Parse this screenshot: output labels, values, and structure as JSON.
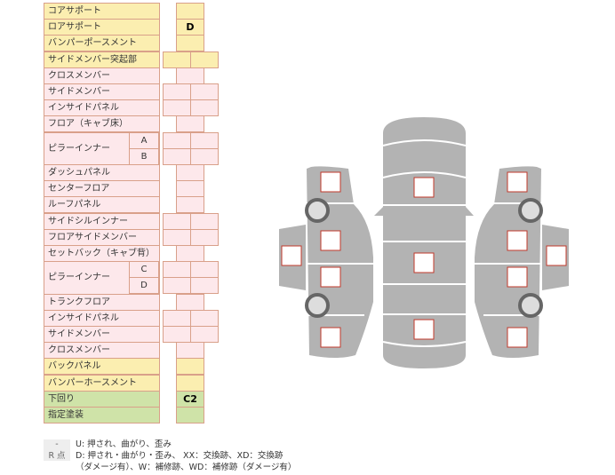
{
  "rows": [
    {
      "label": "コアサポート",
      "color": "y",
      "cells": 1,
      "values": [
        ""
      ]
    },
    {
      "label": "ロアサポート",
      "color": "y",
      "cells": 1,
      "values": [
        "D"
      ]
    },
    {
      "label": "バンパーポースメント",
      "color": "y",
      "cells": 1,
      "values": [
        ""
      ]
    },
    {
      "label": "サイドメンバー突起部",
      "color": "y",
      "cells": 2,
      "values": [
        "",
        ""
      ]
    },
    {
      "label": "クロスメンバー",
      "color": "p",
      "cells": 1,
      "values": [
        ""
      ]
    },
    {
      "label": "サイドメンバー",
      "color": "p",
      "cells": 2,
      "values": [
        "",
        ""
      ]
    },
    {
      "label": "インサイドパネル",
      "color": "p",
      "cells": 2,
      "values": [
        "",
        ""
      ]
    },
    {
      "label": "フロア（キャブ床）",
      "color": "p",
      "cells": 1,
      "values": [
        ""
      ]
    },
    {
      "label": "ピラーインナー",
      "sub": "A",
      "color": "p",
      "cells": 2,
      "values": [
        "",
        ""
      ]
    },
    {
      "label": "",
      "sub": "B",
      "color": "p",
      "cells": 2,
      "values": [
        "",
        ""
      ]
    },
    {
      "label": "ダッシュパネル",
      "color": "p",
      "cells": 1,
      "values": [
        ""
      ]
    },
    {
      "label": "センターフロア",
      "color": "p",
      "cells": 1,
      "values": [
        ""
      ]
    },
    {
      "label": "ルーフパネル",
      "color": "p",
      "cells": 1,
      "values": [
        ""
      ]
    },
    {
      "label": "サイドシルインナー",
      "color": "p",
      "cells": 2,
      "values": [
        "",
        ""
      ]
    },
    {
      "label": "フロアサイドメンバー",
      "color": "p",
      "cells": 2,
      "values": [
        "",
        ""
      ]
    },
    {
      "label": "セットバック（キャブ背）",
      "color": "p",
      "cells": 1,
      "values": [
        ""
      ]
    },
    {
      "label": "ピラーインナー",
      "sub": "C",
      "color": "p",
      "cells": 2,
      "values": [
        "",
        ""
      ]
    },
    {
      "label": "",
      "sub": "D",
      "color": "p",
      "cells": 2,
      "values": [
        "",
        ""
      ]
    },
    {
      "label": "トランクフロア",
      "color": "p",
      "cells": 1,
      "values": [
        ""
      ]
    },
    {
      "label": "インサイドパネル",
      "color": "p",
      "cells": 2,
      "values": [
        "",
        ""
      ]
    },
    {
      "label": "サイドメンバー",
      "color": "p",
      "cells": 2,
      "values": [
        "",
        ""
      ]
    },
    {
      "label": "クロスメンバー",
      "color": "p",
      "cells": 1,
      "values": [
        ""
      ]
    },
    {
      "label": "バックパネル",
      "color": "y",
      "cells": 1,
      "values": [
        ""
      ]
    },
    {
      "label": "バンパーホースメント",
      "color": "y",
      "cells": 1,
      "values": [
        ""
      ]
    },
    {
      "label": "下回り",
      "color": "g",
      "cells": 1,
      "values": [
        "C2"
      ]
    },
    {
      "label": "指定塗装",
      "color": "g",
      "cells": 1,
      "values": [
        ""
      ]
    }
  ],
  "legend": [
    {
      "key": "-",
      "text": "U: 押され、曲がり、歪み"
    },
    {
      "key": "R 点",
      "text": "D: 押され・曲がり・歪み、 XX：交換跡、XD：交換跡"
    },
    {
      "key": "",
      "text": "（ダメージ有）、W：補修跡、WD：補修跡（ダメージ有）"
    }
  ],
  "colors": {
    "yellow": "#fbeeb0",
    "pink": "#fde8eb",
    "green": "#cfe3a8",
    "body": "#b3b3b3",
    "mark": "#c0392b"
  }
}
